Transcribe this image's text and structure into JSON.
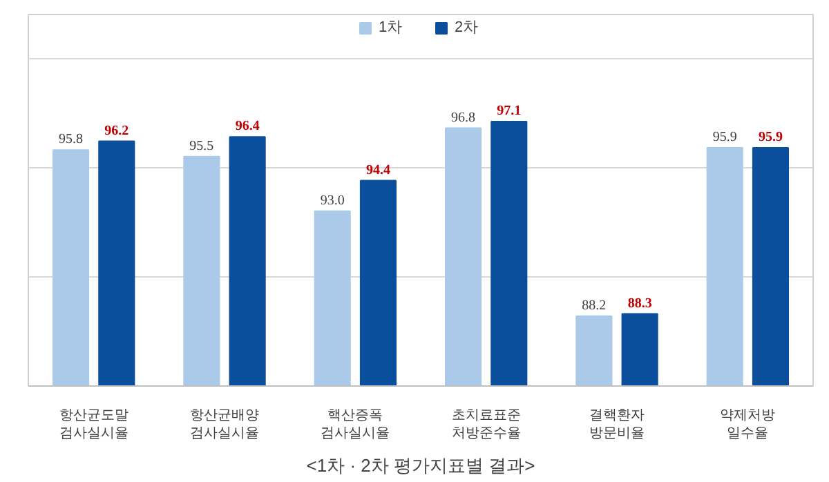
{
  "chart_data": {
    "type": "bar",
    "categories": [
      "항산균도말\n검사실시율",
      "항산균배양\n검사실시율",
      "핵산증폭\n검사실시율",
      "초치료표준\n처방준수율",
      "결핵환자\n방문비율",
      "약제처방\n일수율"
    ],
    "series": [
      {
        "name": "1차",
        "color": "#abc9e8",
        "values": [
          95.8,
          95.5,
          93.0,
          96.8,
          88.2,
          95.9
        ],
        "value_labels": [
          "95.8",
          "95.5",
          "93.0",
          "96.8",
          "88.2",
          "95.9"
        ]
      },
      {
        "name": "2차",
        "color": "#0b4f9c",
        "values": [
          96.2,
          96.4,
          94.4,
          97.1,
          88.3,
          95.9
        ],
        "value_labels": [
          "96.2",
          "96.4",
          "94.4",
          "97.1",
          "88.3",
          "95.9"
        ]
      }
    ],
    "ylim": [
      85,
      102
    ],
    "yticks": [
      {
        "value": 85,
        "label": null
      },
      {
        "value": 90,
        "label": null
      },
      {
        "value": 95,
        "label": null
      },
      {
        "value": 100,
        "label": null
      }
    ],
    "tick_labels": "x",
    "grid": "y",
    "legend": "top",
    "annotations": [
      "<1차 · 2차 평가지표별 결과>"
    ]
  }
}
